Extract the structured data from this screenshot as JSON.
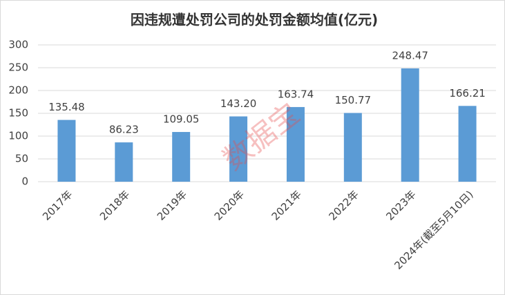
{
  "chart_data": {
    "type": "bar",
    "title": "因违规遭处罚公司的处罚金额均值(亿元)",
    "categories": [
      "2017年",
      "2018年",
      "2019年",
      "2020年",
      "2021年",
      "2022年",
      "2023年",
      "2024年(截至5月10日)"
    ],
    "values": [
      135.48,
      86.23,
      109.05,
      143.2,
      163.74,
      150.77,
      248.47,
      166.21
    ],
    "value_labels": [
      "135.48",
      "86.23",
      "109.05",
      "143.20",
      "163.74",
      "150.77",
      "248.47",
      "166.21"
    ],
    "color": "#5b9bd5",
    "ylim": [
      0,
      300
    ],
    "yticks": [
      0,
      50,
      100,
      150,
      200,
      250,
      300
    ],
    "grid": true,
    "watermark": "数据宝"
  }
}
